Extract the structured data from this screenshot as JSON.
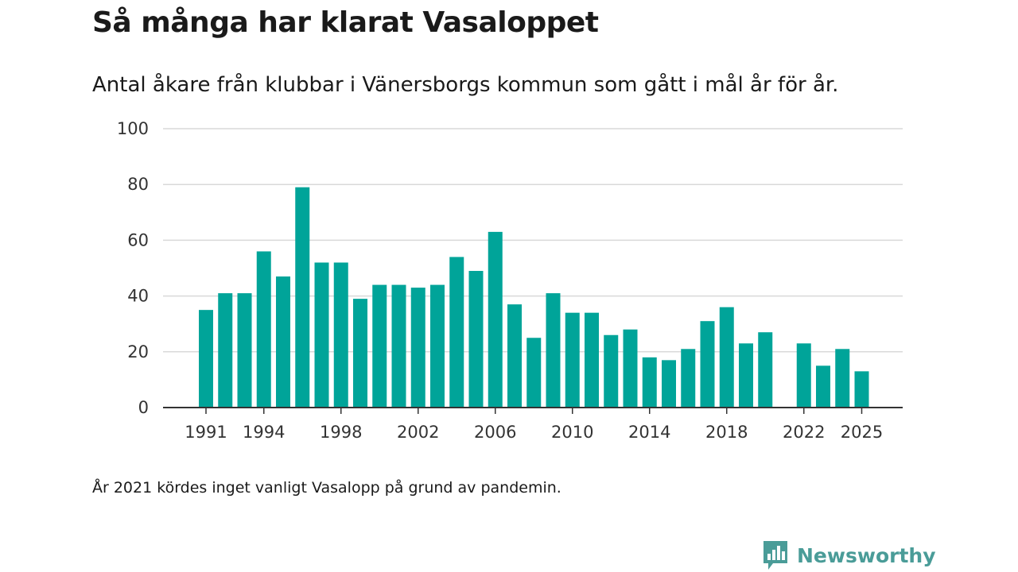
{
  "title": "Så många har klarat Vasaloppet",
  "subtitle": "Antal åkare från klubbar i Vänersborgs kommun som gått i mål år för år.",
  "footnote": "År 2021 kördes inget vanligt Vasalopp på grund av pandemin.",
  "brand": {
    "name": "Newsworthy",
    "color": "#4a9c98",
    "icon": "bar-chart-speech-bubble-icon"
  },
  "colors": {
    "bar": "#00a499",
    "grid": "#d9d9d9",
    "axis": "#333333"
  },
  "chart_data": {
    "type": "bar",
    "title": "Så många har klarat Vasaloppet",
    "subtitle": "Antal åkare från klubbar i Vänersborgs kommun som gått i mål år för år.",
    "xlabel": "",
    "ylabel": "",
    "ylim": [
      0,
      100
    ],
    "yticks": [
      0,
      20,
      40,
      60,
      80,
      100
    ],
    "xticks": [
      1991,
      1994,
      1998,
      2002,
      2006,
      2010,
      2014,
      2018,
      2022,
      2025
    ],
    "xlim": [
      1988,
      2026
    ],
    "grid": true,
    "legend": "none",
    "series": [
      {
        "name": "Antal åkare",
        "x": [
          1991,
          1992,
          1993,
          1994,
          1995,
          1996,
          1997,
          1998,
          1999,
          2000,
          2001,
          2002,
          2003,
          2004,
          2005,
          2006,
          2007,
          2008,
          2009,
          2010,
          2011,
          2012,
          2013,
          2014,
          2015,
          2016,
          2017,
          2018,
          2019,
          2020,
          2022,
          2023,
          2024,
          2025
        ],
        "values": [
          35,
          41,
          41,
          56,
          47,
          79,
          52,
          52,
          39,
          44,
          44,
          43,
          44,
          54,
          49,
          63,
          37,
          25,
          41,
          34,
          34,
          26,
          28,
          18,
          17,
          21,
          31,
          36,
          23,
          27,
          23,
          15,
          21,
          13
        ]
      }
    ]
  }
}
